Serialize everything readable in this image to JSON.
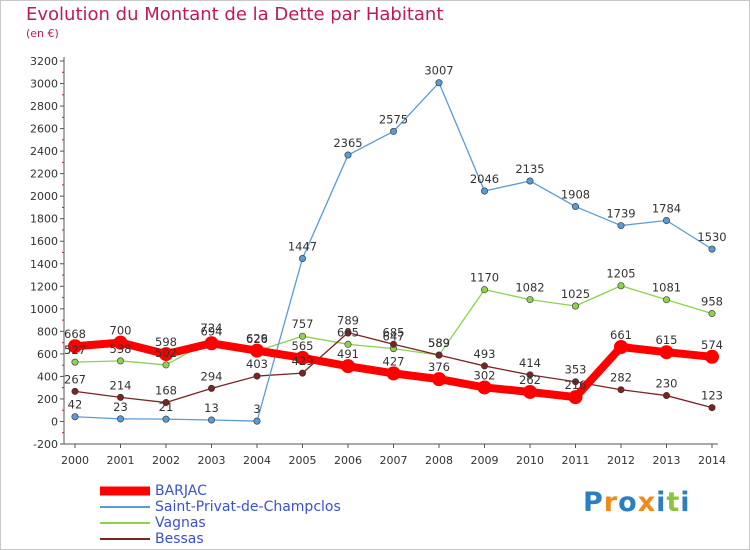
{
  "title": "Evolution du Montant de la Dette par Habitant",
  "subtitle": "(en €)",
  "logo": {
    "text": "Proxiti",
    "letter_colors": [
      "#2b7fc0",
      "#f08a1c",
      "#2b7fc0",
      "#f08a1c",
      "#2b7fc0",
      "#8bc53f",
      "#2b7fc0"
    ]
  },
  "chart_data": {
    "type": "line",
    "title": "Evolution du Montant de la Dette par Habitant",
    "subtitle": "(en €)",
    "x": [
      2000,
      2001,
      2002,
      2003,
      2004,
      2005,
      2006,
      2007,
      2008,
      2009,
      2010,
      2011,
      2012,
      2013,
      2014
    ],
    "ylim": [
      -200,
      3200
    ],
    "yticks": [
      -200,
      0,
      200,
      400,
      600,
      800,
      1000,
      1200,
      1400,
      1600,
      1800,
      2000,
      2200,
      2400,
      2600,
      2800,
      3000,
      3200
    ],
    "grid": false,
    "legend_position": "bottom-left",
    "series": [
      {
        "name": "BARJAC",
        "color": "#ff0000",
        "values": [
          668,
          700,
          598,
          694,
          629,
          565,
          491,
          427,
          376,
          302,
          262,
          216,
          661,
          615,
          574
        ],
        "labels": [
          "668",
          "700",
          "598",
          "694",
          "629",
          "565",
          "491",
          "427",
          "376",
          "302",
          "262",
          "216",
          "661",
          "615",
          "574"
        ]
      },
      {
        "name": "Saint-Privat-de-Champclos",
        "color": "#5a9bd5",
        "values": [
          42,
          23,
          21,
          13,
          3,
          1447,
          2365,
          2575,
          3007,
          2046,
          2135,
          1908,
          1739,
          1784,
          1530
        ],
        "labels": [
          "42",
          "23",
          "21",
          "13",
          "3",
          "1447",
          "2365",
          "2575",
          "3007",
          "2046",
          "2135",
          "1908",
          "1739",
          "1784",
          "1530"
        ]
      },
      {
        "name": "Vagnas",
        "color": "#8ed14f",
        "values": [
          527,
          538,
          502,
          724,
          626,
          757,
          685,
          647,
          589,
          1170,
          1082,
          1025,
          1205,
          1081,
          958
        ],
        "labels": [
          "527",
          "538",
          "502",
          "724",
          "626",
          "757",
          "685",
          "647",
          "589",
          "1170",
          "1082",
          "1025",
          "1205",
          "1081",
          "958"
        ]
      },
      {
        "name": "Bessas",
        "color": "#7a2424",
        "values": [
          267,
          214,
          168,
          294,
          403,
          429,
          789,
          685,
          589,
          493,
          414,
          353,
          282,
          230,
          123
        ],
        "labels": [
          "267",
          "214",
          "168",
          "294",
          "403",
          "429",
          "789",
          "685",
          "589",
          "493",
          "414",
          "353",
          "282",
          "230",
          "123"
        ]
      }
    ]
  }
}
